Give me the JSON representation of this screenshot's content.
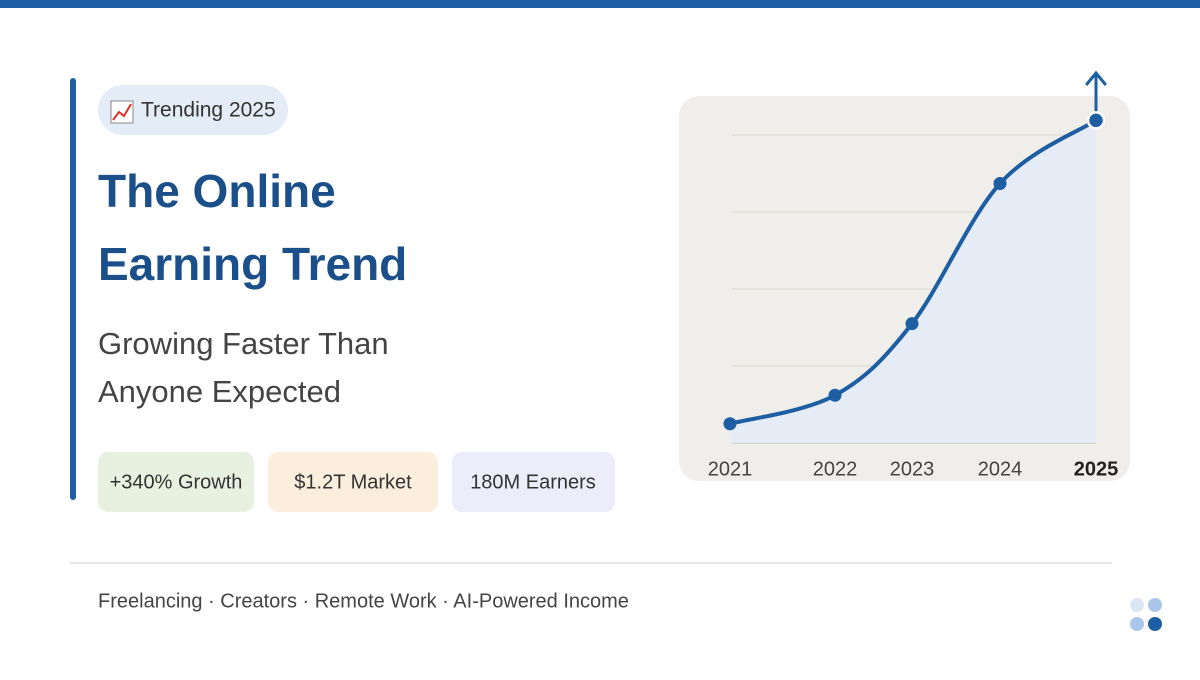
{
  "badge": "Trending 2025",
  "headline": [
    "The Online",
    "Earning Trend"
  ],
  "subheadline": [
    "Growing Faster Than",
    "Anyone Expected"
  ],
  "stats": [
    "+340% Growth",
    "$1.2T Market",
    "180M Earners"
  ],
  "footer": "Freelancing · Creators · Remote Work · AI-Powered Income",
  "chart_data": {
    "type": "line",
    "categories": [
      "2021",
      "2022",
      "2023",
      "2024",
      "2025"
    ],
    "values": [
      0.25,
      0.62,
      1.55,
      3.37,
      4.19
    ],
    "color": "#1e5ea3",
    "ylim": [
      0,
      4.5
    ],
    "yticks": [
      0,
      1,
      2,
      3,
      4
    ],
    "grid": true
  }
}
